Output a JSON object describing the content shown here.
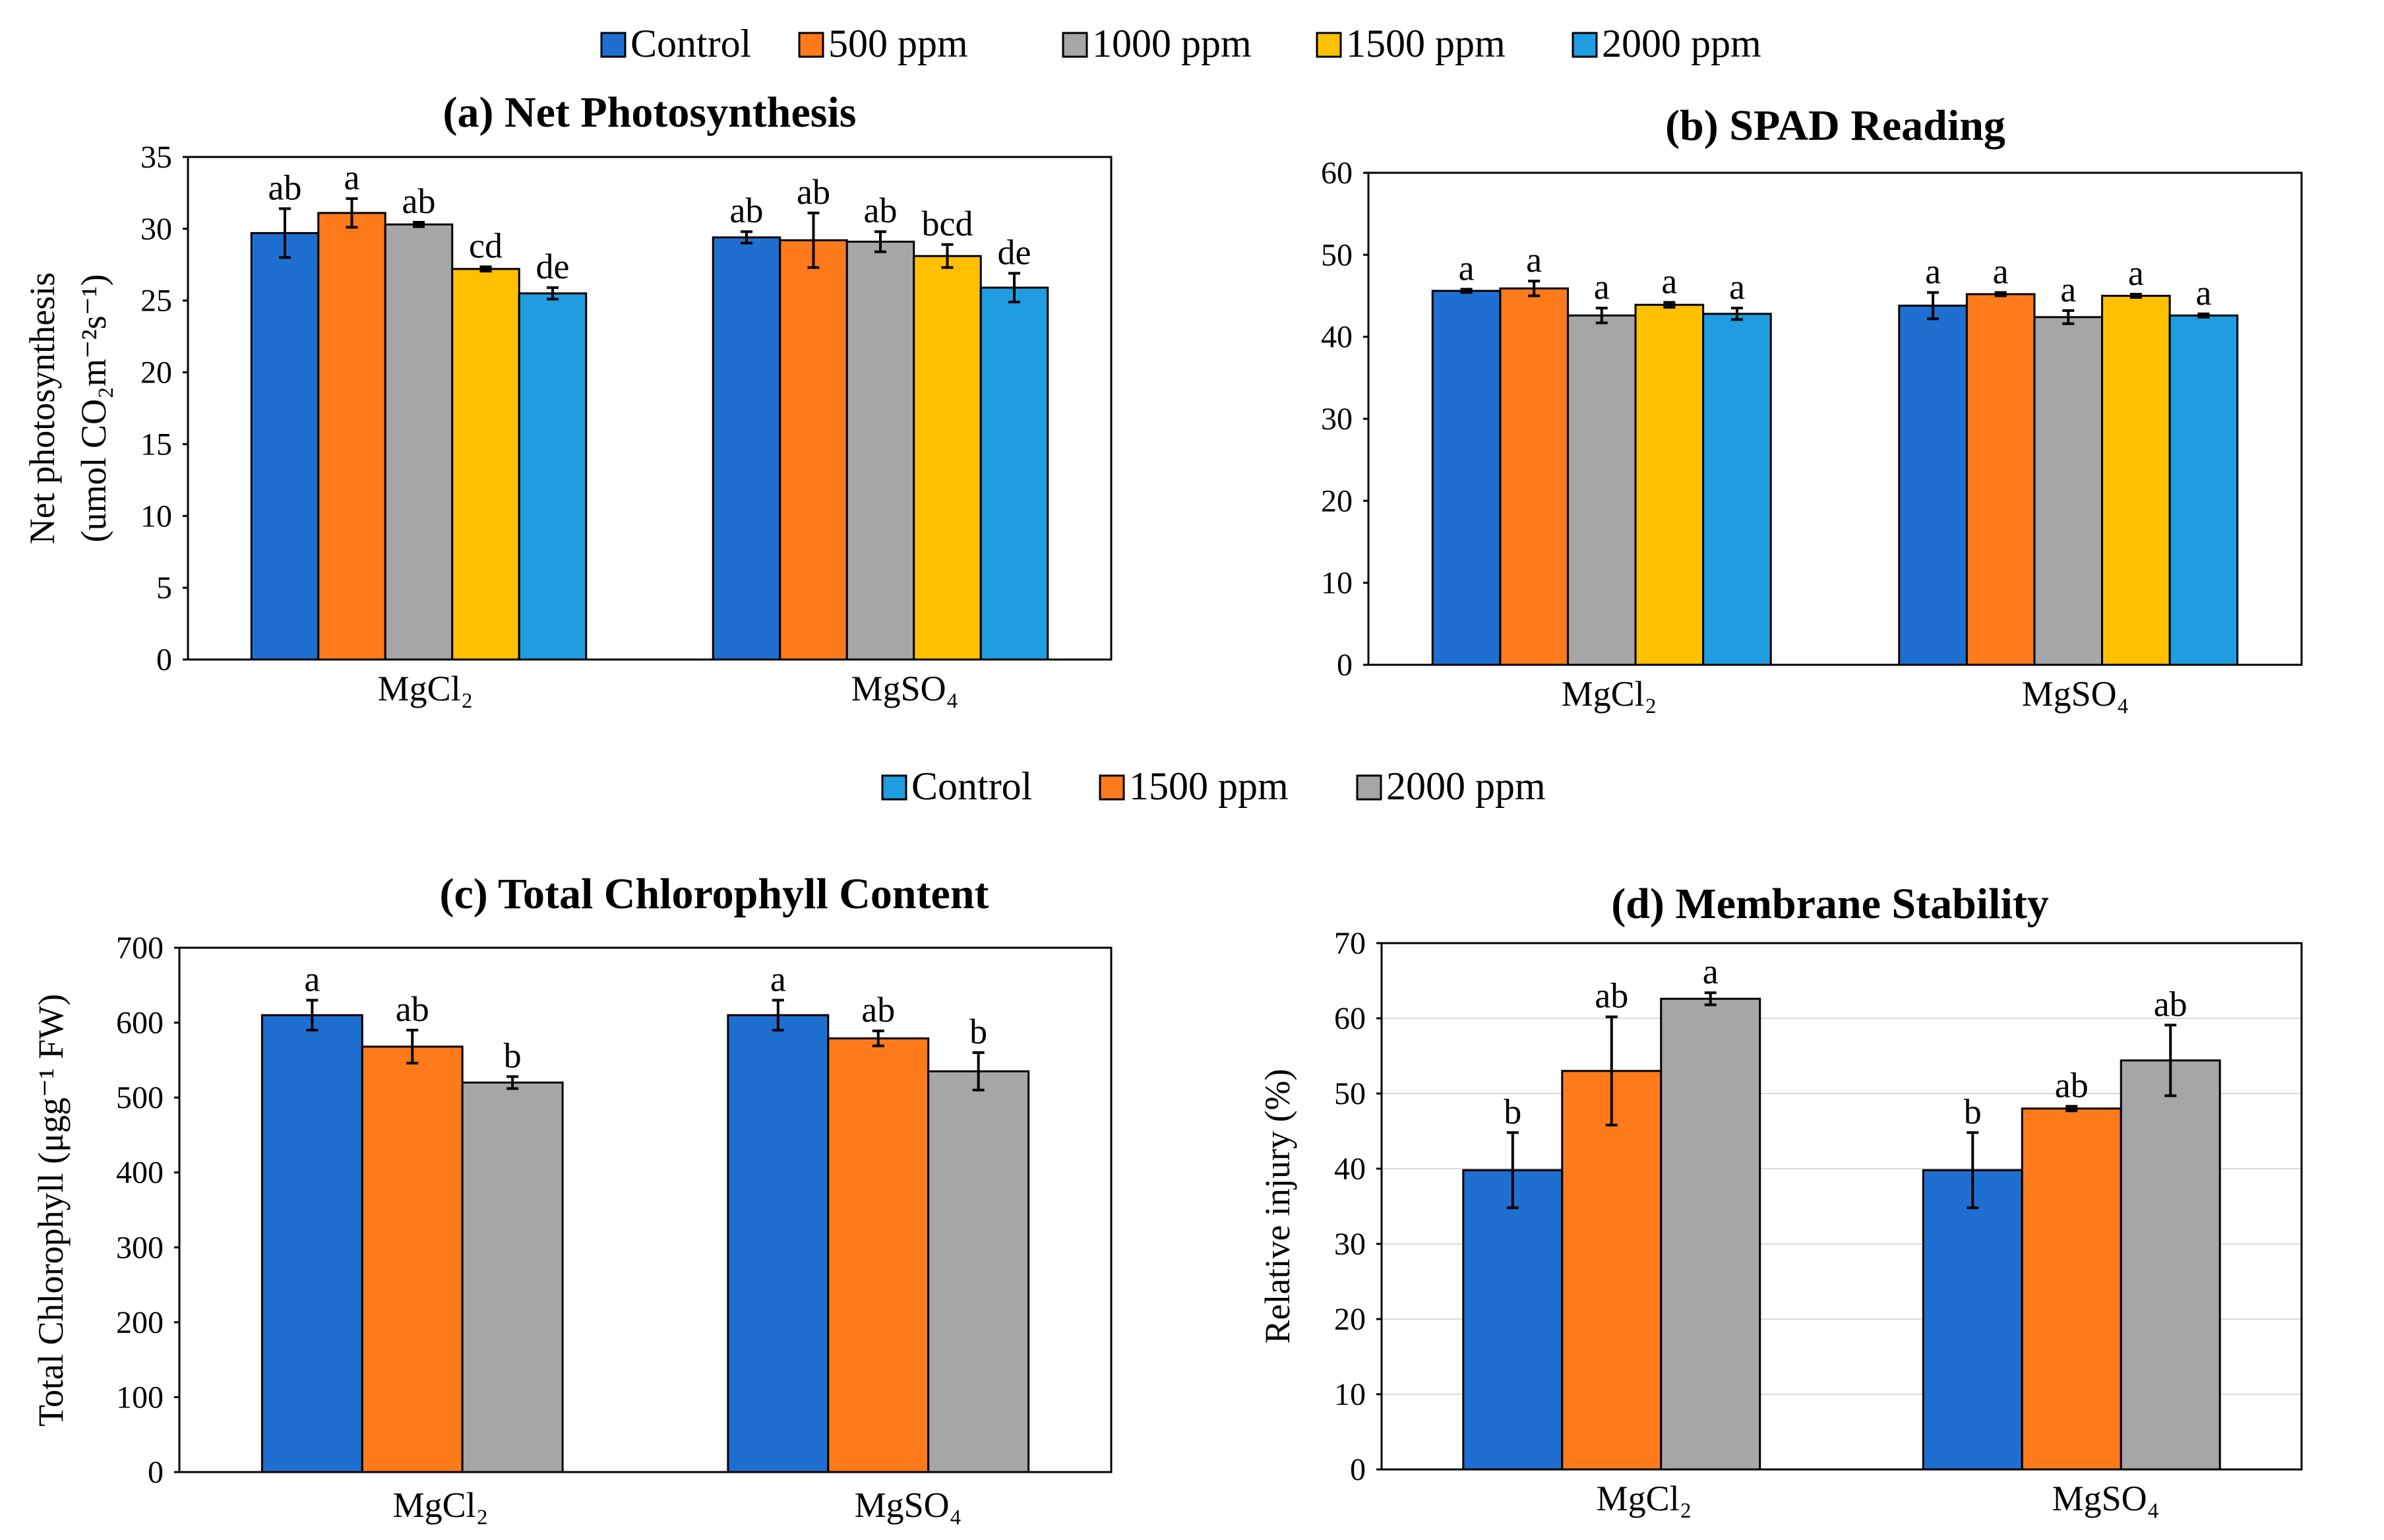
{
  "legend_top": {
    "items": [
      {
        "label": "Control",
        "color": "#1f6fd1"
      },
      {
        "label": "500 ppm",
        "color": "#ff7a1a"
      },
      {
        "label": "1000 ppm",
        "color": "#a6a6a6"
      },
      {
        "label": "1500 ppm",
        "color": "#ffc000"
      },
      {
        "label": "2000 ppm",
        "color": "#1f9de0"
      }
    ]
  },
  "legend_bottom": {
    "items": [
      {
        "label": "Control",
        "color": "#1f9de0"
      },
      {
        "label": "1500 ppm",
        "color": "#ff7a1a"
      },
      {
        "label": "2000 ppm",
        "color": "#a6a6a6"
      }
    ]
  },
  "chart_data": [
    {
      "type": "bar",
      "title": "(a) Net Photosynthesis",
      "ylabel_line1": "Net photosynthesis",
      "ylabel_line2": "(umol CO₂m⁻²s⁻¹)",
      "ylim": [
        0,
        35
      ],
      "yticks": [
        0,
        5,
        10,
        15,
        20,
        25,
        30,
        35
      ],
      "grid": false,
      "categories": [
        "MgCl₂",
        "MgSO₄"
      ],
      "series": [
        {
          "name": "Control",
          "color": "#1f6fd1",
          "values": [
            29.7,
            29.4
          ],
          "errors": [
            1.7,
            0.4
          ],
          "letters": [
            "ab",
            "ab"
          ]
        },
        {
          "name": "500 ppm",
          "color": "#ff7a1a",
          "values": [
            31.1,
            29.2
          ],
          "errors": [
            1.0,
            1.9
          ],
          "letters": [
            "a",
            "ab"
          ]
        },
        {
          "name": "1000 ppm",
          "color": "#a6a6a6",
          "values": [
            30.3,
            29.1
          ],
          "errors": [
            0.15,
            0.7
          ],
          "letters": [
            "ab",
            "ab"
          ]
        },
        {
          "name": "1500 ppm",
          "color": "#ffc000",
          "values": [
            27.2,
            28.1
          ],
          "errors": [
            0.15,
            0.8
          ],
          "letters": [
            "cd",
            "bcd"
          ]
        },
        {
          "name": "2000 ppm",
          "color": "#1f9de0",
          "values": [
            25.5,
            25.9
          ],
          "errors": [
            0.4,
            1.0
          ],
          "letters": [
            "de",
            "de"
          ]
        }
      ]
    },
    {
      "type": "bar",
      "title": "(b) SPAD Reading",
      "ylabel_line1": "",
      "ylabel_line2": "",
      "ylim": [
        0,
        60
      ],
      "yticks": [
        0,
        10,
        20,
        30,
        40,
        50,
        60
      ],
      "grid": false,
      "categories": [
        "MgCl₂",
        "MgSO₄"
      ],
      "series": [
        {
          "name": "Control",
          "color": "#1f6fd1",
          "values": [
            45.6,
            43.8
          ],
          "errors": [
            0.2,
            1.6
          ],
          "letters": [
            "a",
            "a"
          ]
        },
        {
          "name": "500 ppm",
          "color": "#ff7a1a",
          "values": [
            45.9,
            45.2
          ],
          "errors": [
            0.9,
            0.2
          ],
          "letters": [
            "a",
            "a"
          ]
        },
        {
          "name": "1000 ppm",
          "color": "#a6a6a6",
          "values": [
            42.6,
            42.4
          ],
          "errors": [
            0.9,
            0.8
          ],
          "letters": [
            "a",
            "a"
          ]
        },
        {
          "name": "1500 ppm",
          "color": "#ffc000",
          "values": [
            43.9,
            45.0
          ],
          "errors": [
            0.3,
            0.2
          ],
          "letters": [
            "a",
            "a"
          ]
        },
        {
          "name": "2000 ppm",
          "color": "#1f9de0",
          "values": [
            42.8,
            42.6
          ],
          "errors": [
            0.7,
            0.2
          ],
          "letters": [
            "a",
            "a"
          ]
        }
      ]
    },
    {
      "type": "bar",
      "title": "(c) Total Chlorophyll Content",
      "ylabel_line1": "Total Chlorophyll (μgg⁻¹ FW)",
      "ylabel_line2": "",
      "ylim": [
        0,
        700
      ],
      "yticks": [
        0,
        100,
        200,
        300,
        400,
        500,
        600,
        700
      ],
      "grid": false,
      "categories": [
        "MgCl₂",
        "MgSO₄"
      ],
      "series": [
        {
          "name": "Control",
          "color": "#1f6fd1",
          "values": [
            610,
            610
          ],
          "errors": [
            20,
            20
          ],
          "letters": [
            "a",
            "a"
          ]
        },
        {
          "name": "1500 ppm",
          "color": "#ff7a1a",
          "values": [
            568,
            579
          ],
          "errors": [
            22,
            10
          ],
          "letters": [
            "ab",
            "ab"
          ]
        },
        {
          "name": "2000 ppm",
          "color": "#a6a6a6",
          "values": [
            520,
            535
          ],
          "errors": [
            8,
            25
          ],
          "letters": [
            "b",
            "b"
          ]
        }
      ]
    },
    {
      "type": "bar",
      "title": "(d) Membrane Stability",
      "ylabel_line1": "Relative injury (%)",
      "ylabel_line2": "",
      "ylim": [
        0,
        70
      ],
      "yticks": [
        0,
        10,
        20,
        30,
        40,
        50,
        60,
        70
      ],
      "grid": true,
      "categories": [
        "MgCl₂",
        "MgSO₄"
      ],
      "series": [
        {
          "name": "Control",
          "color": "#1f6fd1",
          "values": [
            39.8,
            39.8
          ],
          "errors": [
            5.0,
            5.0
          ],
          "letters": [
            "b",
            "b"
          ]
        },
        {
          "name": "1500 ppm",
          "color": "#ff7a1a",
          "values": [
            53.0,
            48.0
          ],
          "errors": [
            7.2,
            0.3
          ],
          "letters": [
            "ab",
            "ab"
          ]
        },
        {
          "name": "2000 ppm",
          "color": "#a6a6a6",
          "values": [
            62.6,
            54.4
          ],
          "errors": [
            0.8,
            4.7
          ],
          "letters": [
            "a",
            "ab"
          ]
        }
      ]
    }
  ]
}
